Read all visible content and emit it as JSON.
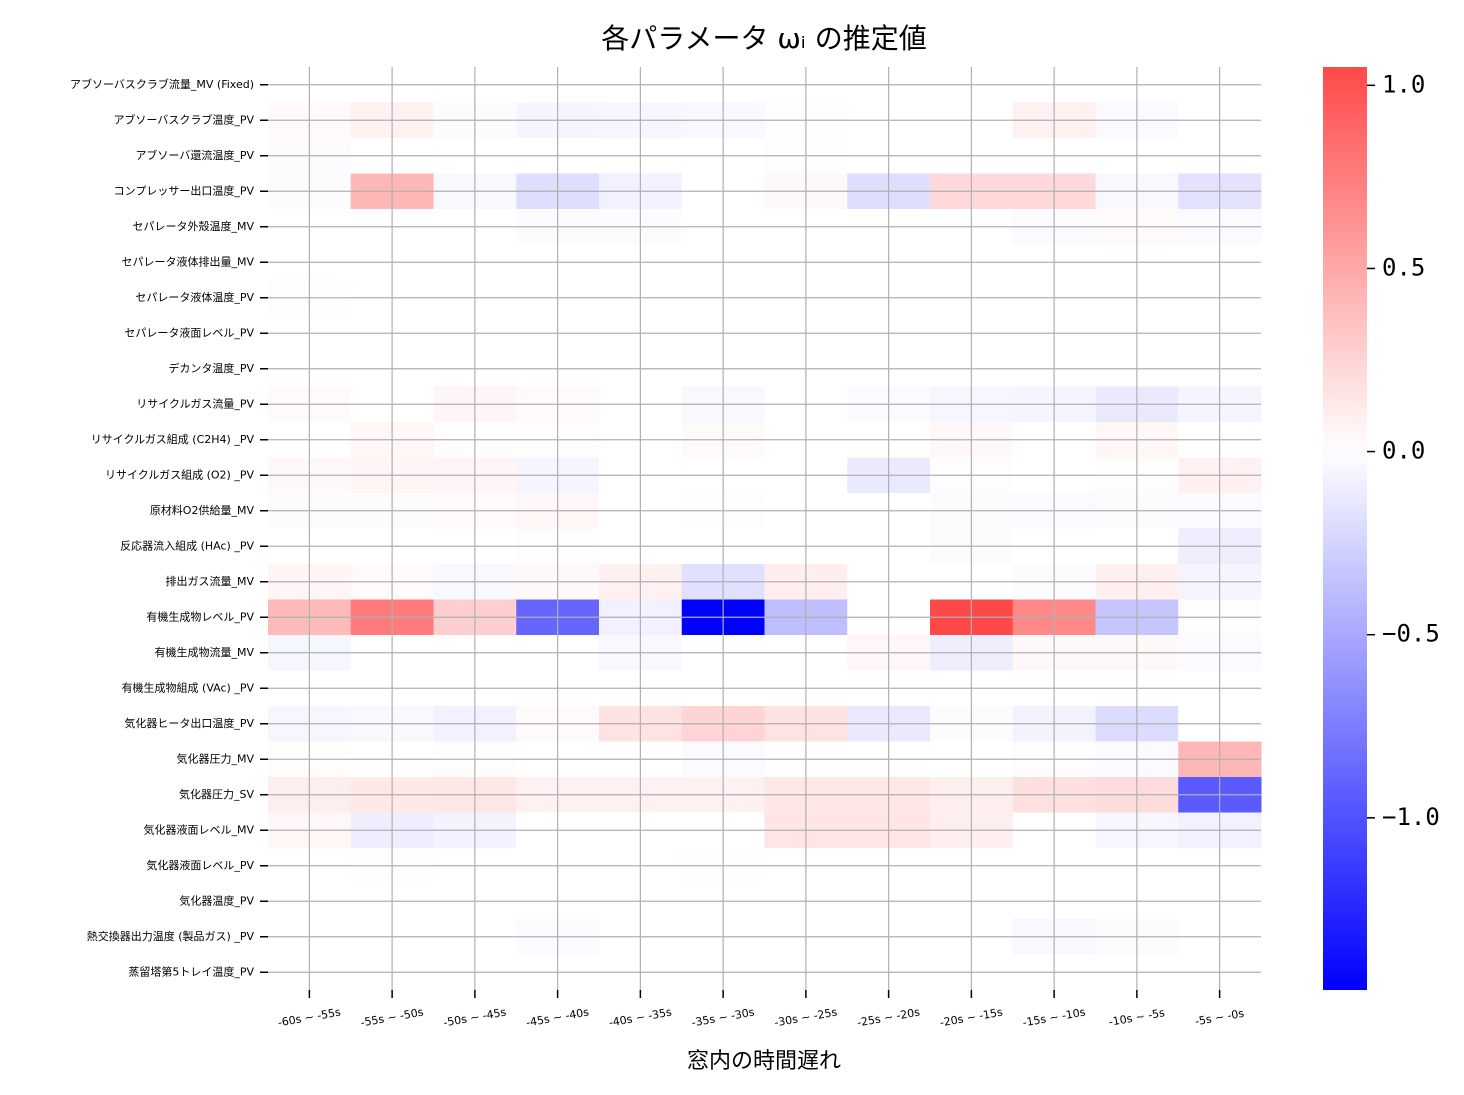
{
  "chart_data": {
    "type": "heatmap",
    "title": "各パラメータ ωᵢ の推定値",
    "x_label": "窓内の時間遅れ",
    "categories": [
      "-60s ~ -55s",
      "-55s ~ -50s",
      "-50s ~ -45s",
      "-45s ~ -40s",
      "-40s ~ -35s",
      "-35s ~ -30s",
      "-30s ~ -25s",
      "-25s ~ -20s",
      "-20s ~ -15s",
      "-15s ~ -10s",
      "-10s ~ -5s",
      "-5s ~ -0s"
    ],
    "rows": [
      "アブソーバスクラブ流量_MV (Fixed)",
      "アブソーバスクラブ温度_PV",
      "アブソーバ還流温度_PV",
      "コンプレッサー出口温度_PV",
      "セパレータ外殻温度_MV",
      "セパレータ液体排出量_MV",
      "セパレータ液体温度_PV",
      "セパレータ液面レベル_PV",
      "デカンタ温度_PV",
      "リサイクルガス流量_PV",
      "リサイクルガス組成 (C2H4) _PV",
      "リサイクルガス組成 (O2) _PV",
      "原材料O2供給量_MV",
      "反応器流入組成 (HAc) _PV",
      "排出ガス流量_MV",
      "有機生成物レベル_PV",
      "有機生成物流量_MV",
      "有機生成物組成 (VAc) _PV",
      "気化器ヒータ出口温度_PV",
      "気化器圧力_MV",
      "気化器圧力_SV",
      "気化器液面レベル_MV",
      "気化器液面レベル_PV",
      "気化器温度_PV",
      "熱交換器出力温度 (製品ガス) _PV",
      "蒸留塔第5トレイ温度_PV"
    ],
    "values": [
      [
        0,
        0,
        0,
        0,
        0,
        0,
        0,
        0,
        0,
        0,
        0,
        0
      ],
      [
        0.03,
        0.08,
        -0.02,
        -0.06,
        -0.05,
        -0.04,
        0.01,
        0,
        0,
        0.08,
        -0.03,
        0
      ],
      [
        -0.02,
        0,
        0,
        0,
        0,
        0,
        -0.01,
        0,
        0,
        0,
        0,
        0
      ],
      [
        -0.02,
        0.42,
        -0.04,
        -0.19,
        -0.08,
        0,
        0.04,
        -0.19,
        0.22,
        0.22,
        -0.04,
        -0.17
      ],
      [
        0,
        0,
        0,
        -0.02,
        -0.02,
        0,
        0,
        0,
        0,
        -0.03,
        0.03,
        -0.03
      ],
      [
        0,
        0,
        0,
        0,
        0,
        0,
        0,
        0,
        0,
        0,
        0,
        0
      ],
      [
        0.02,
        0,
        0,
        0,
        0,
        0,
        0,
        0,
        0,
        0,
        0,
        0
      ],
      [
        0,
        0,
        0,
        0,
        0,
        0,
        0,
        0,
        0,
        0,
        0,
        0
      ],
      [
        0,
        0,
        0,
        0,
        0,
        0,
        0,
        0,
        0,
        0,
        0,
        0
      ],
      [
        0.03,
        0,
        0.06,
        0.03,
        0,
        -0.04,
        0,
        -0.03,
        -0.05,
        -0.06,
        -0.12,
        -0.06
      ],
      [
        0,
        0.05,
        0.02,
        0.02,
        0,
        0.03,
        0,
        0,
        0.04,
        0,
        0.05,
        0
      ],
      [
        0.04,
        0.06,
        0.06,
        -0.06,
        0,
        0,
        0,
        -0.12,
        -0.01,
        0,
        0.02,
        0.08
      ],
      [
        -0.02,
        -0.02,
        0.03,
        0.05,
        0,
        0.02,
        0,
        0,
        -0.02,
        -0.03,
        -0.02,
        -0.03
      ],
      [
        0,
        0,
        0,
        -0.01,
        0,
        0,
        0,
        0,
        -0.02,
        0,
        0,
        -0.1
      ],
      [
        0.06,
        0.03,
        -0.04,
        0.04,
        0.08,
        -0.18,
        0.1,
        0,
        0,
        -0.02,
        0.09,
        -0.06
      ],
      [
        0.4,
        0.76,
        0.28,
        -0.88,
        -0.08,
        -1.47,
        -0.37,
        0,
        1.05,
        0.68,
        -0.33,
        0.02
      ],
      [
        -0.05,
        0,
        0,
        0,
        -0.04,
        0,
        0,
        0.05,
        -0.1,
        0.04,
        0.04,
        -0.03
      ],
      [
        0,
        0,
        0,
        0,
        0,
        0,
        0,
        0,
        0,
        0,
        0,
        0
      ],
      [
        -0.05,
        -0.04,
        -0.08,
        0.03,
        0.16,
        0.25,
        0.16,
        -0.12,
        -0.02,
        -0.07,
        -0.2,
        0
      ],
      [
        0.02,
        0,
        0.02,
        0,
        0,
        -0.03,
        0,
        0,
        0,
        -0.01,
        -0.03,
        0.42
      ],
      [
        0.1,
        0.13,
        0.14,
        0.08,
        0.08,
        0.08,
        0.14,
        0.14,
        0.1,
        0.18,
        0.2,
        -0.95
      ],
      [
        0.05,
        -0.1,
        -0.07,
        0,
        0,
        0,
        0.15,
        0.15,
        0.1,
        0,
        -0.05,
        -0.08
      ],
      [
        0,
        0.02,
        0,
        0,
        0,
        0.01,
        0,
        0,
        0,
        0,
        0,
        0
      ],
      [
        0,
        0,
        0,
        0,
        0,
        0,
        0,
        0,
        0,
        0,
        0,
        0
      ],
      [
        0,
        0,
        0,
        -0.03,
        0,
        0,
        0,
        0,
        0,
        -0.04,
        -0.02,
        0
      ],
      [
        0,
        0,
        0,
        0,
        0,
        0,
        0,
        0,
        0,
        0,
        0,
        0
      ]
    ],
    "colormap": "bwr",
    "zlim": [
      -1.47,
      1.05
    ],
    "zticks": [
      {
        "value": 1,
        "label": "1.0"
      },
      {
        "value": 0.5,
        "label": "0.5"
      },
      {
        "value": 0,
        "label": "0.0"
      },
      {
        "value": -0.5,
        "label": "−0.5"
      },
      {
        "value": -1,
        "label": "−1.0"
      }
    ],
    "grid": true
  }
}
